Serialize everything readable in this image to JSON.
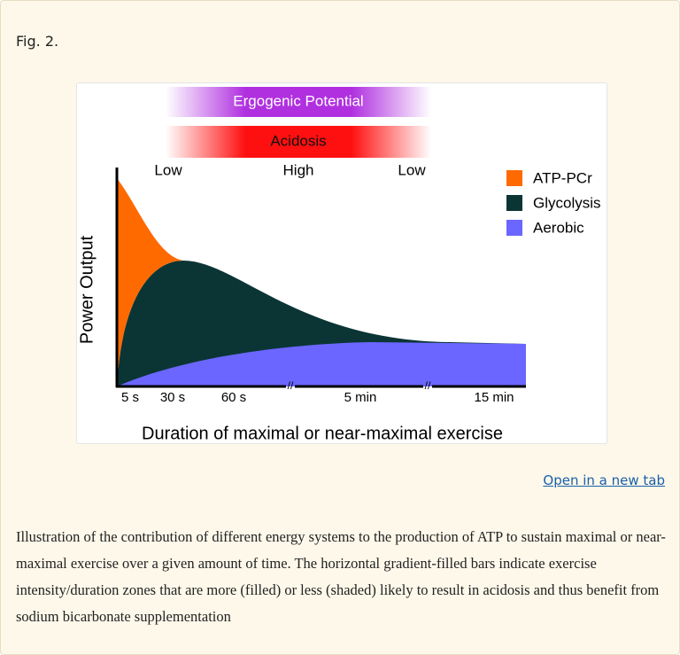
{
  "figure_label": "Fig. 2.",
  "figure": {
    "bars": [
      "Ergogenic Potential",
      "Acidosis"
    ],
    "zone_labels": [
      "Low",
      "High",
      "Low"
    ],
    "legend": [
      "ATP-PCr",
      "Glycolysis",
      "Aerobic"
    ],
    "y_axis_label": "Power Output",
    "x_tick_labels": [
      "5 s",
      "30 s",
      "60 s",
      "5 min",
      "15 min"
    ],
    "x_axis_label": "Duration of maximal or near-maximal exercise"
  },
  "link": "Open in a new tab",
  "caption": "Illustration of the contribution of different energy systems to the production of ATP to sustain maximal or near-maximal exercise over a given amount of time. The horizontal gradient-filled bars indicate exercise intensity/duration zones that are more (filled) or less (shaded) likely to result in acidosis and thus benefit from sodium bicarbonate supplementation"
}
